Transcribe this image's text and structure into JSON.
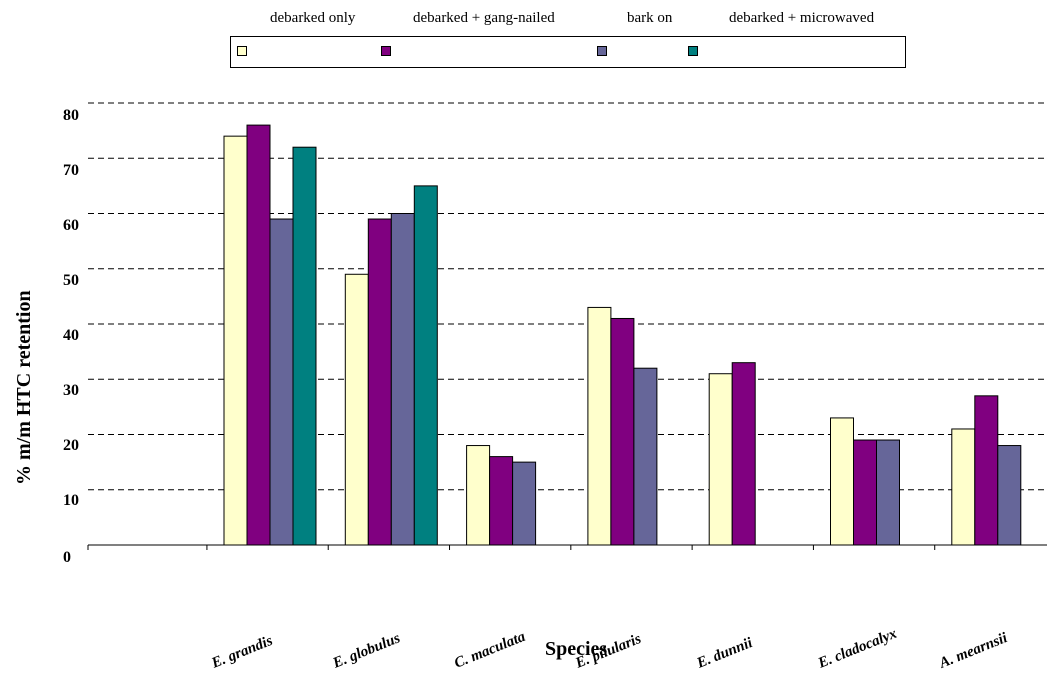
{
  "chart_data": {
    "type": "bar",
    "title": "",
    "xlabel": "Species",
    "ylabel": "% m/m HTC retention",
    "ylim": [
      0,
      80
    ],
    "yticks": [
      "0",
      "10",
      "20",
      "30",
      "40",
      "50",
      "60",
      "70",
      "80"
    ],
    "grid": "horizontal dashed",
    "legend_position": "top",
    "categories": [
      "E. grandis",
      "E. globulus",
      "C. maculata",
      "E. pilularis",
      "E. dunnii",
      "E. cladocalyx",
      "A. mearnsii"
    ],
    "series": [
      {
        "name": "debarked only",
        "color": "#ffffcc",
        "values": [
          74,
          49,
          18,
          43,
          31,
          23,
          21
        ]
      },
      {
        "name": "debarked + gang-nailed",
        "color": "#800080",
        "values": [
          76,
          59,
          16,
          41,
          33,
          19,
          27
        ]
      },
      {
        "name": "bark on",
        "color": "#666699",
        "values": [
          59,
          60,
          15,
          32,
          null,
          19,
          18
        ]
      },
      {
        "name": "debarked + microwaved",
        "color": "#008080",
        "values": [
          72,
          65,
          null,
          null,
          null,
          null,
          null
        ]
      }
    ]
  }
}
